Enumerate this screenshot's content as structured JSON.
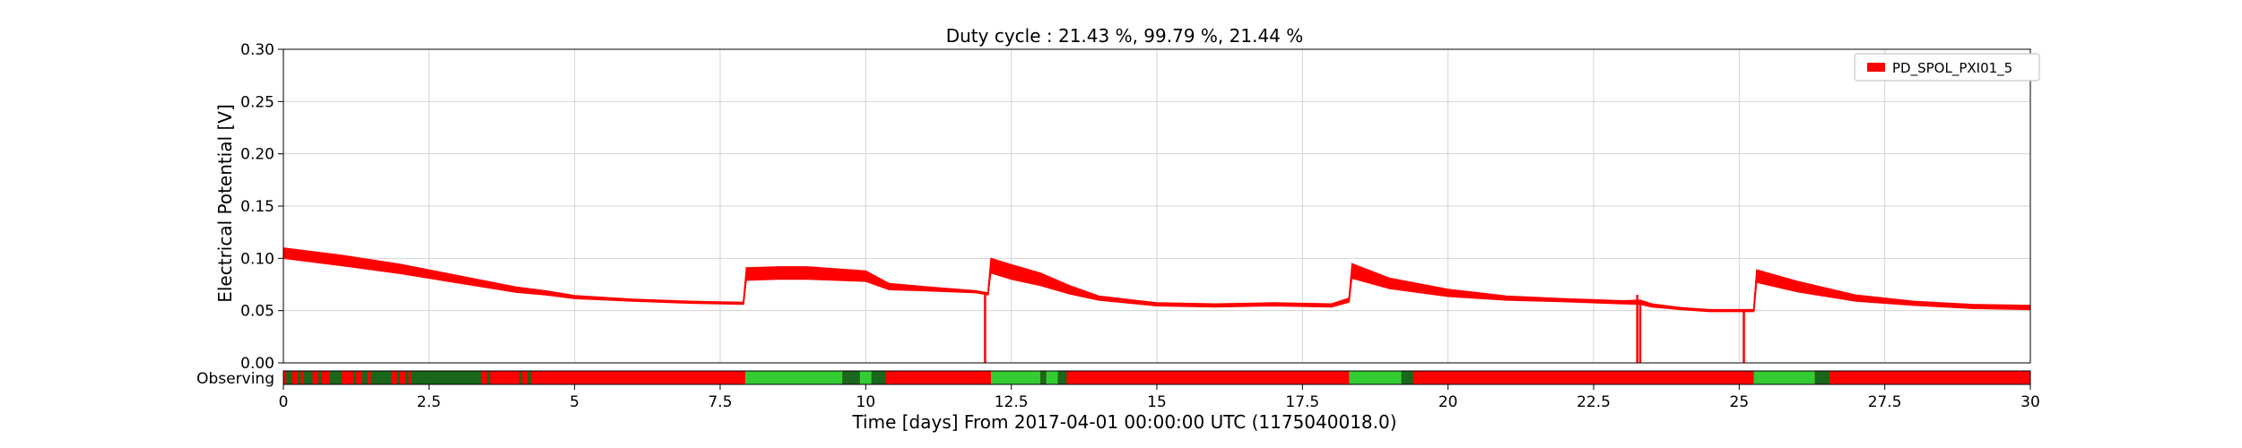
{
  "chart_data": {
    "type": "line",
    "title": "Duty cycle : 21.43 %, 99.79 %, 21.44 %",
    "xlabel": "Time [days] From 2017-04-01 00:00:00 UTC (1175040018.0)",
    "ylabel": "Electrical Potential [V]",
    "xlim": [
      0,
      30
    ],
    "ylim": [
      0,
      0.3
    ],
    "grid": true,
    "legend_position": "top-right",
    "x_ticks": [
      0,
      2.5,
      5,
      7.5,
      10,
      12.5,
      15,
      17.5,
      20,
      22.5,
      25,
      27.5,
      30
    ],
    "x_tick_labels": [
      "0",
      "2.5",
      "5",
      "7.5",
      "10",
      "12.5",
      "15",
      "17.5",
      "20",
      "22.5",
      "25",
      "27.5",
      "30"
    ],
    "y_ticks": [
      0,
      0.05,
      0.1,
      0.15,
      0.2,
      0.25,
      0.3
    ],
    "y_tick_labels": [
      "0.00",
      "0.05",
      "0.10",
      "0.15",
      "0.20",
      "0.25",
      "0.30"
    ],
    "series": [
      {
        "name": "PD_SPOL_PXI01_5",
        "color": "#ff0000",
        "x": [
          0,
          1,
          2,
          2.5,
          3,
          3.5,
          4,
          4.5,
          5,
          6,
          7,
          7.9,
          7.95,
          8.5,
          9,
          10,
          10.4,
          11,
          11.9,
          12.1,
          12.15,
          12.5,
          13,
          13.5,
          14,
          15,
          16,
          17,
          18,
          18.3,
          18.35,
          19,
          20,
          21,
          22,
          23,
          23.3,
          23.5,
          24,
          24.5,
          25,
          25.25,
          25.3,
          26,
          27,
          28,
          29,
          30
        ],
        "y": [
          0.105,
          0.098,
          0.09,
          0.085,
          0.08,
          0.075,
          0.07,
          0.067,
          0.063,
          0.06,
          0.058,
          0.057,
          0.085,
          0.086,
          0.086,
          0.083,
          0.073,
          0.071,
          0.068,
          0.066,
          0.093,
          0.087,
          0.08,
          0.07,
          0.062,
          0.056,
          0.055,
          0.056,
          0.055,
          0.06,
          0.088,
          0.076,
          0.067,
          0.062,
          0.06,
          0.058,
          0.058,
          0.055,
          0.052,
          0.05,
          0.05,
          0.05,
          0.083,
          0.073,
          0.062,
          0.057,
          0.054,
          0.053
        ],
        "band": [
          0.01,
          0.01,
          0.009,
          0.008,
          0.007,
          0.006,
          0.005,
          0.004,
          0.003,
          0.002,
          0.002,
          0.002,
          0.012,
          0.012,
          0.012,
          0.01,
          0.006,
          0.004,
          0.002,
          0.002,
          0.014,
          0.014,
          0.012,
          0.008,
          0.004,
          0.003,
          0.003,
          0.003,
          0.003,
          0.004,
          0.014,
          0.01,
          0.007,
          0.004,
          0.003,
          0.003,
          0.004,
          0.003,
          0.002,
          0.002,
          0.002,
          0.002,
          0.012,
          0.01,
          0.006,
          0.004,
          0.004,
          0.004
        ],
        "dropouts": [
          {
            "x": 12.05,
            "y_min": 0.0,
            "y_max": 0.065
          },
          {
            "x": 23.25,
            "y_min": 0.0,
            "y_max": 0.065
          },
          {
            "x": 23.3,
            "y_min": 0.0,
            "y_max": 0.06
          },
          {
            "x": 25.08,
            "y_min": 0.0,
            "y_max": 0.05
          }
        ]
      }
    ],
    "state_bar": {
      "label": "Observing",
      "off_color": "#ff0000",
      "on_color": "#33cc33",
      "dark_on_color": "#1a661a",
      "on_segments": [
        {
          "start": 7.93,
          "end": 9.6,
          "shade": "on"
        },
        {
          "start": 9.6,
          "end": 9.9,
          "shade": "dark"
        },
        {
          "start": 9.9,
          "end": 10.1,
          "shade": "on"
        },
        {
          "start": 10.1,
          "end": 10.35,
          "shade": "dark"
        },
        {
          "start": 12.15,
          "end": 13.0,
          "shade": "on"
        },
        {
          "start": 13.0,
          "end": 13.1,
          "shade": "dark"
        },
        {
          "start": 13.1,
          "end": 13.3,
          "shade": "on"
        },
        {
          "start": 13.3,
          "end": 13.45,
          "shade": "dark"
        },
        {
          "start": 18.3,
          "end": 19.2,
          "shade": "on"
        },
        {
          "start": 19.2,
          "end": 19.4,
          "shade": "dark"
        },
        {
          "start": 25.25,
          "end": 26.3,
          "shade": "on"
        },
        {
          "start": 26.3,
          "end": 26.55,
          "shade": "dark"
        },
        {
          "start": 0.05,
          "end": 0.15,
          "shade": "dark"
        },
        {
          "start": 0.25,
          "end": 0.3,
          "shade": "dark"
        },
        {
          "start": 0.35,
          "end": 0.5,
          "shade": "dark"
        },
        {
          "start": 0.6,
          "end": 0.65,
          "shade": "dark"
        },
        {
          "start": 0.8,
          "end": 1.0,
          "shade": "dark"
        },
        {
          "start": 1.2,
          "end": 1.25,
          "shade": "dark"
        },
        {
          "start": 1.35,
          "end": 1.45,
          "shade": "dark"
        },
        {
          "start": 1.5,
          "end": 1.85,
          "shade": "dark"
        },
        {
          "start": 1.95,
          "end": 2.0,
          "shade": "dark"
        },
        {
          "start": 2.1,
          "end": 2.15,
          "shade": "dark"
        },
        {
          "start": 2.2,
          "end": 3.4,
          "shade": "dark"
        },
        {
          "start": 3.5,
          "end": 3.55,
          "shade": "dark"
        },
        {
          "start": 4.05,
          "end": 4.1,
          "shade": "dark"
        },
        {
          "start": 4.2,
          "end": 4.25,
          "shade": "dark"
        }
      ]
    }
  }
}
